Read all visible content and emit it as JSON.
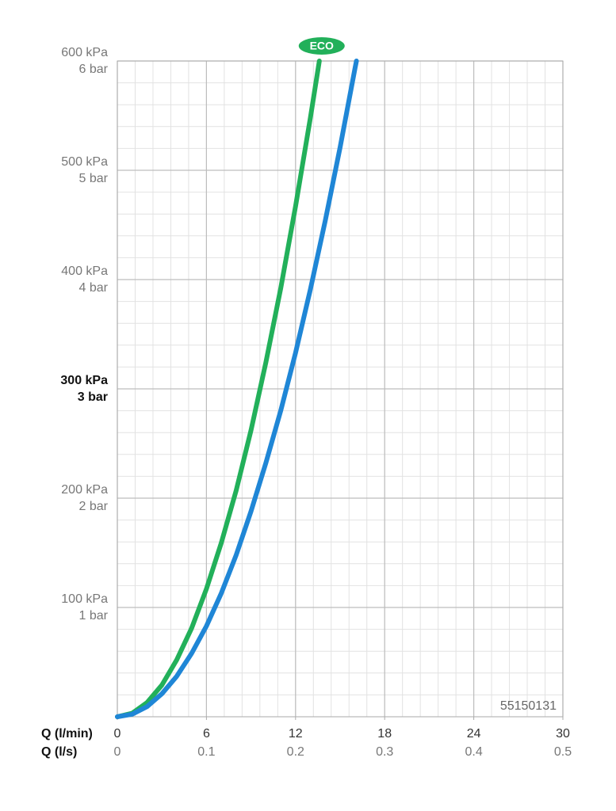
{
  "chart_data": {
    "type": "line",
    "xlabel": "Q (l/min)",
    "x2label": "Q (l/s)",
    "xlim": [
      0,
      30
    ],
    "xticks": [
      0,
      6,
      12,
      18,
      24,
      30
    ],
    "x2lim": [
      0,
      0.5
    ],
    "x2ticks": [
      0,
      0.1,
      0.2,
      0.3,
      0.4,
      0.5
    ],
    "ylim": [
      0,
      600
    ],
    "yticks": [
      {
        "value": 100,
        "label": "100 kPa"
      },
      {
        "value": 200,
        "label": "200 kPa"
      },
      {
        "value": 300,
        "label": "300 kPa"
      },
      {
        "value": 400,
        "label": "400 kPa"
      },
      {
        "value": 500,
        "label": "500 kPa"
      },
      {
        "value": 600,
        "label": "600 kPa"
      }
    ],
    "ytick_sublabels": [
      "1 bar",
      "2 bar",
      "3 bar",
      "4 bar",
      "5 bar",
      "6 bar"
    ],
    "emphasized_ytick": 300,
    "grid": true,
    "minor_grid": {
      "x_step": 1.2,
      "y_step": 20
    },
    "annotation": "55150131",
    "series": [
      {
        "name": "ECO",
        "color": "#22b05a",
        "x": [
          0,
          1,
          2,
          3,
          4,
          5,
          6,
          7,
          8,
          9,
          10,
          11,
          12,
          13,
          13.6
        ],
        "values": [
          0,
          3.2,
          13,
          29,
          52,
          81,
          117,
          159,
          207,
          262,
          324,
          392,
          467,
          548,
          600
        ]
      },
      {
        "color": "#1f86d6",
        "x": [
          0,
          1,
          2,
          3,
          4,
          5,
          6,
          7,
          8,
          9,
          10,
          11,
          12,
          13,
          14,
          15,
          16,
          16.1
        ],
        "values": [
          0,
          2.3,
          9.3,
          21,
          37,
          58,
          83,
          113,
          148,
          188,
          232,
          280,
          333,
          391,
          454,
          521,
          593,
          600
        ]
      }
    ]
  }
}
